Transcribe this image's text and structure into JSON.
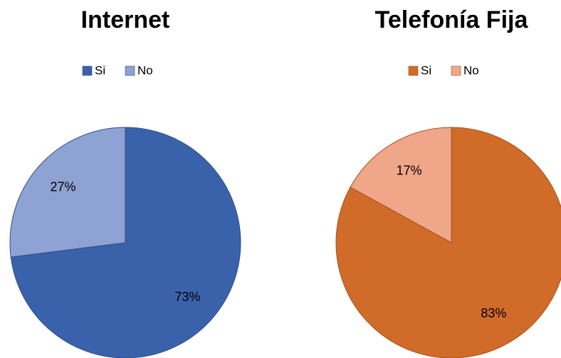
{
  "chart_data": [
    {
      "type": "pie",
      "title": "Internet",
      "categories": [
        "Si",
        "No"
      ],
      "values": [
        73,
        27
      ],
      "value_labels": [
        "73%",
        "27%"
      ],
      "colors": [
        "#3a62ab",
        "#8fa2d4"
      ],
      "stroke": "#2f4f8a"
    },
    {
      "type": "pie",
      "title": "Telefonía Fija",
      "categories": [
        "Si",
        "No"
      ],
      "values": [
        83,
        17
      ],
      "value_labels": [
        "83%",
        "17%"
      ],
      "colors": [
        "#d06b29",
        "#f0a688"
      ],
      "stroke": "#a4531f"
    }
  ]
}
